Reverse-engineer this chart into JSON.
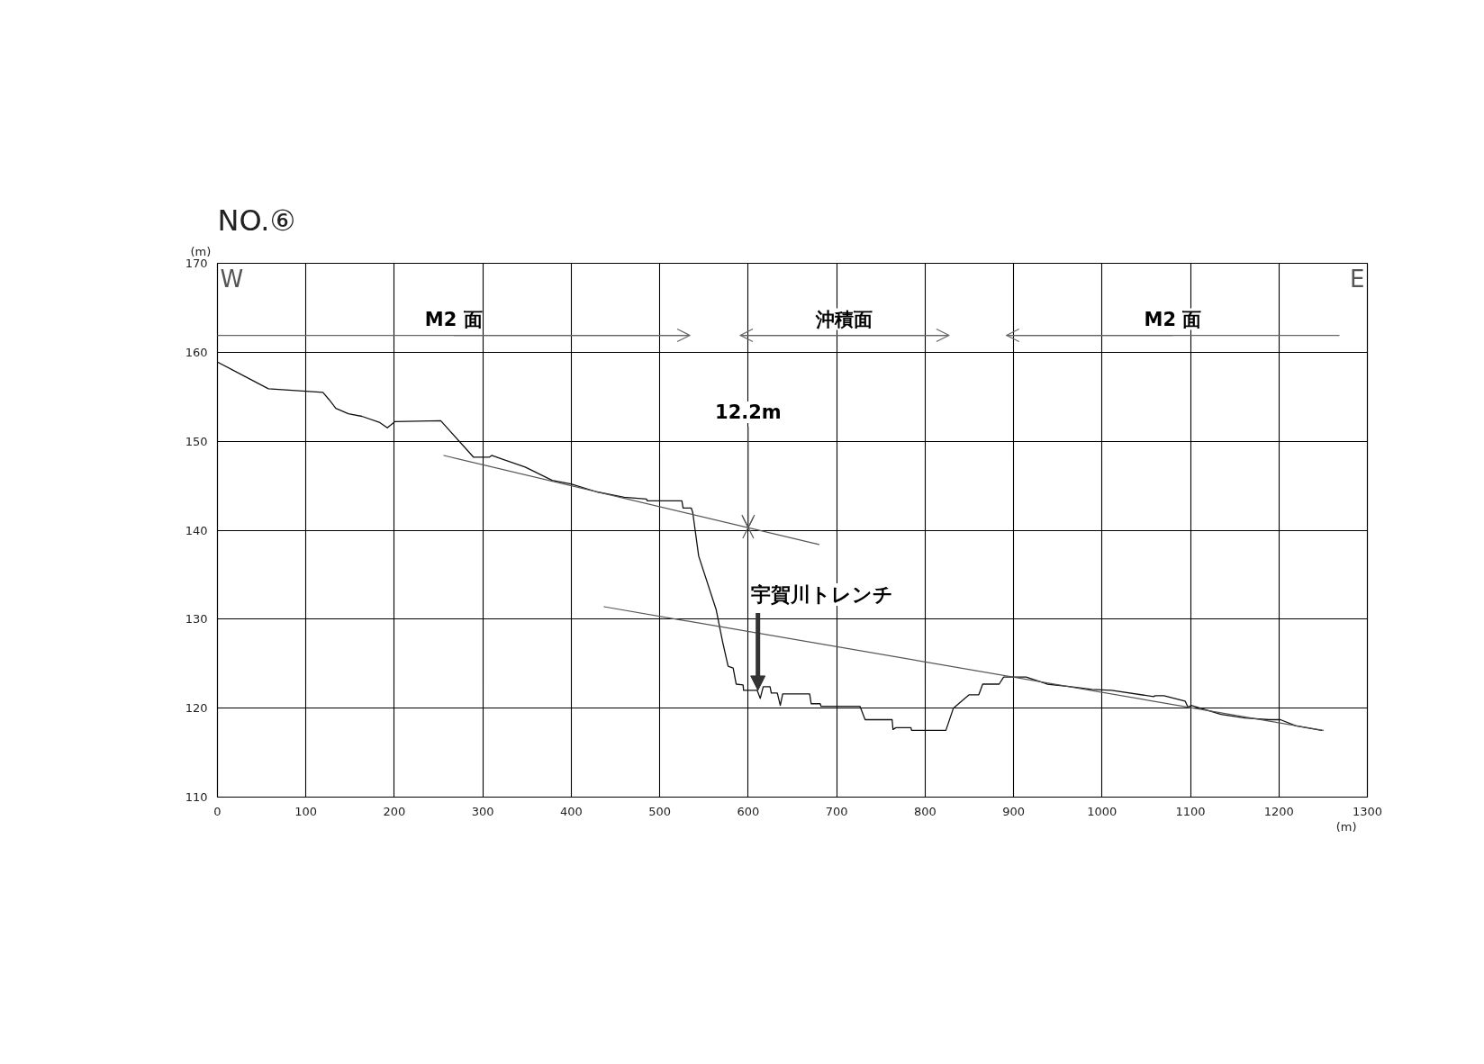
{
  "chart_data": {
    "type": "line",
    "title": "NO.⑥",
    "xlabel": "(m)",
    "ylabel": "(m)",
    "xlim": [
      0,
      1300
    ],
    "xticks": [
      0,
      100,
      200,
      300,
      400,
      500,
      600,
      700,
      800,
      900,
      1000,
      1100,
      1200,
      1300
    ],
    "ylim": [
      110,
      170
    ],
    "yticks": [
      110,
      120,
      130,
      140,
      150,
      160,
      170
    ],
    "grid": true,
    "series": [
      {
        "color": "#111111",
        "x": [
          0,
          57.6,
          119.2,
          126,
          133.8,
          148,
          163.3,
          183.6,
          192,
          200.5,
          252.4,
          289.6,
          307.2,
          310,
          347.9,
          378.4,
          399.7,
          429.2,
          459.7,
          485,
          486,
          525,
          526.4,
          535.6,
          537.3,
          544,
          563.7,
          571.2,
          577.3,
          583,
          586.4,
          594.2,
          594.8,
          610.2,
          613.6,
          617,
          624.7,
          626.1,
          632.9,
          636.3,
          639,
          669.5,
          671.2,
          681.4,
          682.4,
          726.4,
          732.2,
          762.7,
          763.7,
          767,
          784,
          784.7,
          823.5,
          832,
          849.8,
          860.7,
          865.1,
          883.7,
          888.8,
          900,
          914.2,
          938,
          965,
          988.8,
          1010.8,
          1058.3,
          1060,
          1070,
          1093.9,
          1097.3,
          1100.7,
          1114.2,
          1134.6,
          1161.7,
          1188.8,
          1201.7,
          1219.3,
          1248.1
        ],
        "values": [
          158.9,
          155.9,
          155.5,
          154.7,
          153.7,
          153.1,
          152.8,
          152.1,
          151.5,
          152.2,
          152.3,
          148.2,
          148.2,
          148.4,
          147.1,
          145.6,
          145.2,
          144.3,
          143.7,
          143.5,
          143.3,
          143.3,
          142.5,
          142.5,
          142.0,
          137.1,
          131.1,
          127.4,
          124.7,
          124.5,
          122.7,
          122.6,
          122.0,
          122.0,
          121.1,
          122.4,
          122.4,
          121.7,
          121.7,
          120.3,
          121.6,
          121.6,
          120.5,
          120.5,
          120.2,
          120.2,
          118.7,
          118.7,
          117.6,
          117.8,
          117.8,
          117.5,
          117.5,
          120.0,
          121.5,
          121.5,
          122.7,
          122.7,
          123.5,
          123.5,
          123.5,
          122.7,
          122.4,
          122.1,
          122.0,
          121.3,
          121.4,
          121.4,
          120.8,
          120.1,
          120.3,
          119.9,
          119.3,
          118.9,
          118.7,
          118.7,
          118.0,
          117.5
        ]
      },
      {
        "color": "#555555",
        "x": [
          256,
          680
        ],
        "values": [
          148.4,
          138.4
        ]
      },
      {
        "color": "#555555",
        "x": [
          437,
          1250
        ],
        "values": [
          131.4,
          117.5
        ]
      },
      {
        "name": "M2 面",
        "color": "#666666",
        "x": [
          0,
          534
        ],
        "values": [
          161.9,
          161.9
        ]
      },
      {
        "name": "沖積面",
        "color": "#666666",
        "x": [
          591,
          827
        ],
        "values": [
          161.9,
          161.9
        ]
      },
      {
        "name": "M2 面",
        "color": "#666666",
        "x": [
          892,
          1268
        ],
        "values": [
          161.9,
          161.9
        ]
      }
    ],
    "annotations": [
      "W",
      "E",
      {
        "text": "12.2m",
        "x": 600,
        "y": 140.3
      },
      {
        "text": "宇賀川トレンチ",
        "x": 611,
        "y": 122.0
      }
    ]
  }
}
